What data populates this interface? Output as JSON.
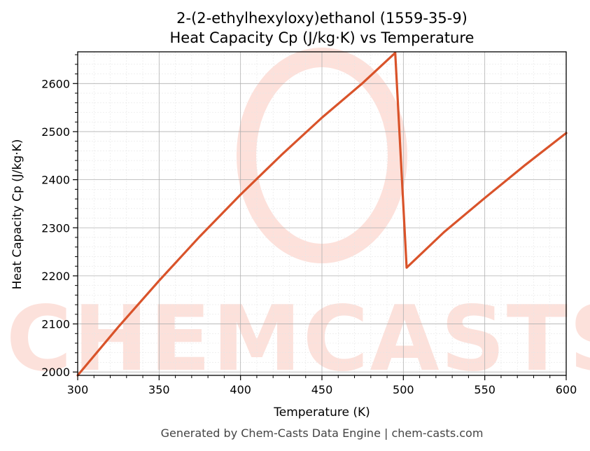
{
  "chart_data": {
    "type": "line",
    "title_line1": "2-(2-ethylhexyloxy)ethanol (1559-35-9)",
    "title_line2": "Heat Capacity Cp (J/kg·K) vs Temperature",
    "xlabel": "Temperature (K)",
    "ylabel": "Heat Capacity Cp (J/kg·K)",
    "xlim": [
      300,
      600
    ],
    "ylim": [
      1993,
      2666
    ],
    "x_ticks": [
      300,
      350,
      400,
      450,
      500,
      550,
      600
    ],
    "y_ticks": [
      2000,
      2100,
      2200,
      2300,
      2400,
      2500,
      2600
    ],
    "grid": true,
    "line_color": "#d9532a",
    "series": [
      {
        "x": [
          300,
          325,
          350,
          375,
          400,
          425,
          450,
          475,
          495,
          502,
          525,
          550,
          575,
          600
        ],
        "values": [
          1993,
          2094,
          2190,
          2282,
          2369,
          2451,
          2529,
          2601,
          2664,
          2217,
          2291,
          2362,
          2431,
          2497
        ]
      }
    ]
  },
  "watermark": {
    "text": "CHEMCASTS"
  },
  "footer": {
    "text": "Generated by Chem-Casts Data Engine | chem-casts.com"
  }
}
